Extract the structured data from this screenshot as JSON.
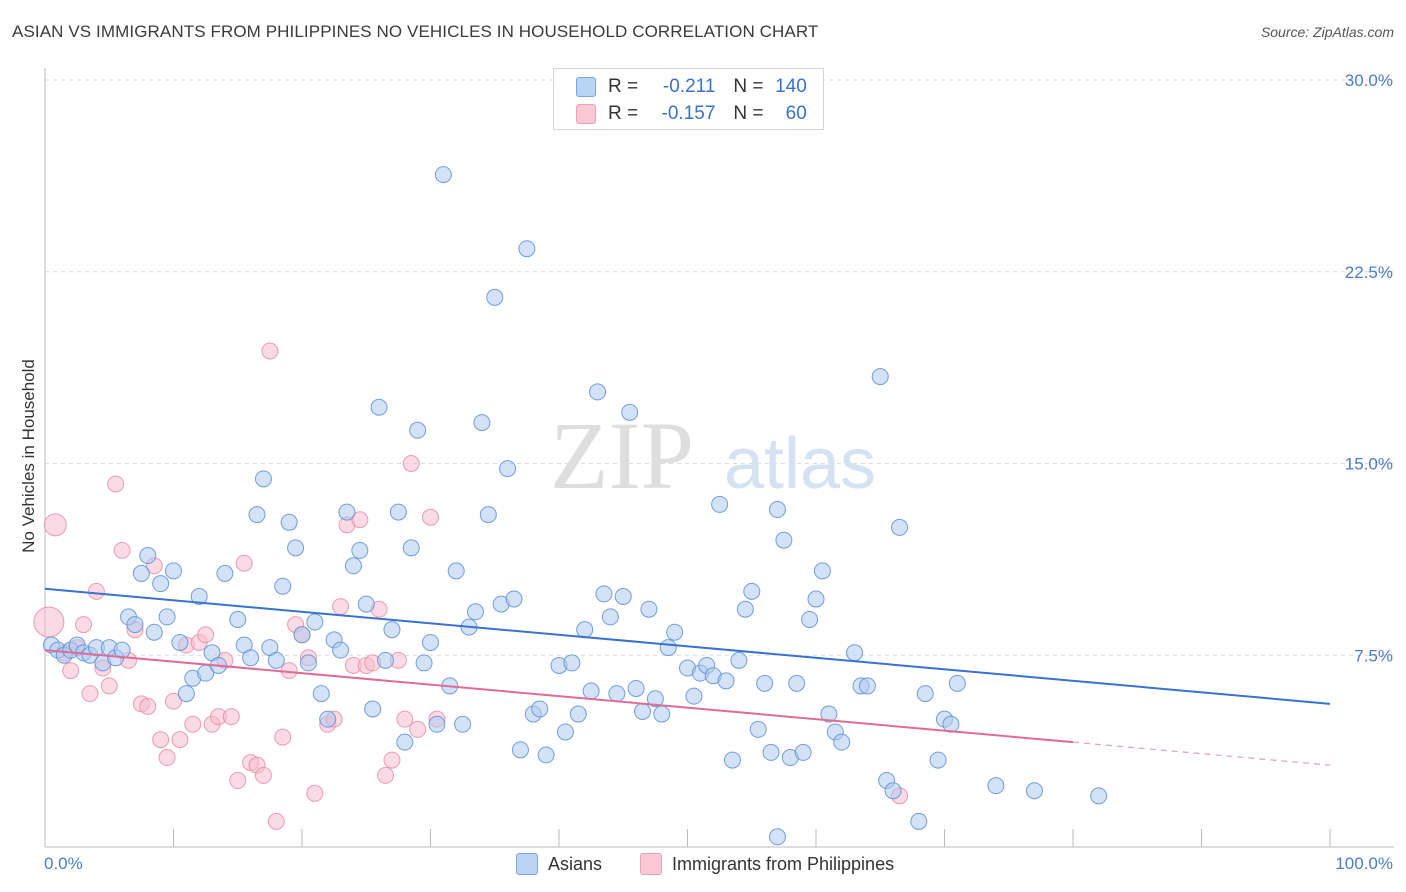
{
  "title": "ASIAN VS IMMIGRANTS FROM PHILIPPINES NO VEHICLES IN HOUSEHOLD CORRELATION CHART",
  "source": "Source: ZipAtlas.com",
  "watermark": {
    "zip": "ZIP",
    "atlas": "atlas"
  },
  "legend_top": [
    {
      "r_label": "R =",
      "r_value": "-0.211",
      "n_label": "N =",
      "n_value": "140",
      "color": "#a8c8f0"
    },
    {
      "r_label": "R =",
      "r_value": "-0.157",
      "n_label": "N =",
      "n_value": "60",
      "color": "#f5b8cc"
    }
  ],
  "chart_data": {
    "type": "scatter",
    "title": "ASIAN VS IMMIGRANTS FROM PHILIPPINES NO VEHICLES IN HOUSEHOLD CORRELATION CHART",
    "xlabel": "",
    "ylabel": "No Vehicles in Household",
    "xlim": [
      0,
      100
    ],
    "ylim": [
      0,
      30
    ],
    "x_tick_labels": [
      "0.0%",
      "100.0%"
    ],
    "y_ticks": [
      7.5,
      15.0,
      22.5,
      30.0
    ],
    "y_tick_labels": [
      "7.5%",
      "15.0%",
      "22.5%",
      "30.0%"
    ],
    "grid": true,
    "legend_position": "bottom",
    "series": [
      {
        "name": "Asians",
        "color": "#5b8fd6",
        "fill": "#aecbf0",
        "trend": {
          "x": [
            0,
            100
          ],
          "y": [
            10.1,
            5.6
          ],
          "color": "#3a72d0"
        },
        "points": [
          [
            0.5,
            7.9
          ],
          [
            1.0,
            7.7
          ],
          [
            1.5,
            7.5
          ],
          [
            2,
            7.7
          ],
          [
            2.5,
            7.9
          ],
          [
            3,
            7.6
          ],
          [
            3.5,
            7.5
          ],
          [
            4,
            7.8
          ],
          [
            4.5,
            7.2
          ],
          [
            5,
            7.8
          ],
          [
            5.5,
            7.4
          ],
          [
            6,
            7.7
          ],
          [
            6.5,
            9.0
          ],
          [
            7,
            8.7
          ],
          [
            7.5,
            10.7
          ],
          [
            8,
            11.4
          ],
          [
            8.5,
            8.4
          ],
          [
            9,
            10.3
          ],
          [
            9.5,
            9.0
          ],
          [
            10,
            10.8
          ],
          [
            10.5,
            8.0
          ],
          [
            11,
            6.0
          ],
          [
            11.5,
            6.6
          ],
          [
            12,
            9.8
          ],
          [
            12.5,
            6.8
          ],
          [
            13,
            7.6
          ],
          [
            13.5,
            7.1
          ],
          [
            14,
            10.7
          ],
          [
            15,
            8.9
          ],
          [
            15.5,
            7.9
          ],
          [
            16,
            7.4
          ],
          [
            16.5,
            13.0
          ],
          [
            17,
            14.4
          ],
          [
            17.5,
            7.8
          ],
          [
            18,
            7.3
          ],
          [
            18.5,
            10.2
          ],
          [
            19,
            12.7
          ],
          [
            19.5,
            11.7
          ],
          [
            20,
            8.3
          ],
          [
            20.5,
            7.2
          ],
          [
            21,
            8.8
          ],
          [
            21.5,
            6.0
          ],
          [
            22,
            5.0
          ],
          [
            22.5,
            8.1
          ],
          [
            23,
            7.7
          ],
          [
            23.5,
            13.1
          ],
          [
            24,
            11.0
          ],
          [
            24.5,
            11.6
          ],
          [
            25,
            9.5
          ],
          [
            25.5,
            5.4
          ],
          [
            26,
            17.2
          ],
          [
            26.5,
            7.3
          ],
          [
            27,
            8.5
          ],
          [
            27.5,
            13.1
          ],
          [
            28,
            4.1
          ],
          [
            28.5,
            11.7
          ],
          [
            29,
            16.3
          ],
          [
            29.5,
            7.2
          ],
          [
            30,
            8.0
          ],
          [
            30.5,
            4.8
          ],
          [
            31,
            26.3
          ],
          [
            31.5,
            6.3
          ],
          [
            32,
            10.8
          ],
          [
            32.5,
            4.8
          ],
          [
            33,
            8.6
          ],
          [
            33.5,
            9.2
          ],
          [
            34,
            16.6
          ],
          [
            34.5,
            13.0
          ],
          [
            35,
            21.5
          ],
          [
            35.5,
            9.5
          ],
          [
            36,
            14.8
          ],
          [
            36.5,
            9.7
          ],
          [
            37,
            3.8
          ],
          [
            37.5,
            23.4
          ],
          [
            38,
            5.2
          ],
          [
            38.5,
            5.4
          ],
          [
            39,
            3.6
          ],
          [
            40,
            7.1
          ],
          [
            40.5,
            4.5
          ],
          [
            41,
            7.2
          ],
          [
            41.5,
            5.2
          ],
          [
            42,
            8.5
          ],
          [
            42.5,
            6.1
          ],
          [
            43,
            17.8
          ],
          [
            43.5,
            9.9
          ],
          [
            44,
            9.0
          ],
          [
            44.5,
            6.0
          ],
          [
            45,
            9.8
          ],
          [
            45.5,
            17.0
          ],
          [
            46,
            6.2
          ],
          [
            46.5,
            5.3
          ],
          [
            47,
            9.3
          ],
          [
            47.5,
            5.8
          ],
          [
            48,
            5.2
          ],
          [
            48.5,
            7.8
          ],
          [
            49,
            8.4
          ],
          [
            50,
            7.0
          ],
          [
            50.5,
            5.9
          ],
          [
            51,
            6.8
          ],
          [
            51.5,
            7.1
          ],
          [
            52,
            6.7
          ],
          [
            52.5,
            13.4
          ],
          [
            53,
            6.5
          ],
          [
            53.5,
            3.4
          ],
          [
            54,
            7.3
          ],
          [
            54.5,
            9.3
          ],
          [
            55,
            10.0
          ],
          [
            55.5,
            4.6
          ],
          [
            56,
            6.4
          ],
          [
            56.5,
            3.7
          ],
          [
            57,
            13.2
          ],
          [
            57.5,
            12.0
          ],
          [
            58,
            3.5
          ],
          [
            58.5,
            6.4
          ],
          [
            59,
            3.7
          ],
          [
            59.5,
            8.9
          ],
          [
            60,
            9.7
          ],
          [
            60.5,
            10.8
          ],
          [
            61,
            5.2
          ],
          [
            61.5,
            4.5
          ],
          [
            62,
            4.1
          ],
          [
            63,
            7.6
          ],
          [
            63.5,
            6.3
          ],
          [
            64,
            6.3
          ],
          [
            65,
            18.4
          ],
          [
            65.5,
            2.6
          ],
          [
            66,
            2.2
          ],
          [
            66.5,
            12.5
          ],
          [
            68,
            1.0
          ],
          [
            68.5,
            6.0
          ],
          [
            69.5,
            3.4
          ],
          [
            70,
            5.0
          ],
          [
            70.5,
            4.8
          ],
          [
            71,
            6.4
          ],
          [
            74,
            2.4
          ],
          [
            77,
            2.2
          ],
          [
            82,
            2.0
          ],
          [
            57,
            0.4
          ]
        ]
      },
      {
        "name": "Immigrants from Philippines",
        "color": "#e8889f",
        "fill": "#f5bccd",
        "trend": {
          "x": [
            0,
            80
          ],
          "y": [
            7.7,
            4.1
          ],
          "color": "#e06b94"
        },
        "trend_dashed": {
          "x": [
            80,
            100
          ],
          "y": [
            4.1,
            3.2
          ]
        },
        "points": [
          [
            0.3,
            8.8
          ],
          [
            0.8,
            12.6
          ],
          [
            1.5,
            7.6
          ],
          [
            2,
            6.9
          ],
          [
            2.5,
            7.8
          ],
          [
            3,
            8.7
          ],
          [
            3.5,
            6.0
          ],
          [
            4,
            10.0
          ],
          [
            4.5,
            7.0
          ],
          [
            5,
            6.3
          ],
          [
            5.5,
            14.2
          ],
          [
            6,
            11.6
          ],
          [
            6.5,
            7.3
          ],
          [
            7,
            8.5
          ],
          [
            7.5,
            5.6
          ],
          [
            8,
            5.5
          ],
          [
            8.5,
            11.0
          ],
          [
            9,
            4.2
          ],
          [
            9.5,
            3.5
          ],
          [
            10,
            5.7
          ],
          [
            10.5,
            4.2
          ],
          [
            11,
            7.9
          ],
          [
            11.5,
            4.8
          ],
          [
            12,
            8.0
          ],
          [
            12.5,
            8.3
          ],
          [
            13,
            4.8
          ],
          [
            13.5,
            5.1
          ],
          [
            14,
            7.3
          ],
          [
            14.5,
            5.1
          ],
          [
            15,
            2.6
          ],
          [
            15.5,
            11.1
          ],
          [
            16,
            3.3
          ],
          [
            16.5,
            3.2
          ],
          [
            17,
            2.8
          ],
          [
            17.5,
            19.4
          ],
          [
            18,
            1.0
          ],
          [
            18.5,
            4.3
          ],
          [
            19,
            6.9
          ],
          [
            19.5,
            8.7
          ],
          [
            20,
            8.3
          ],
          [
            20.5,
            7.4
          ],
          [
            21,
            2.1
          ],
          [
            22,
            4.8
          ],
          [
            22.5,
            5.0
          ],
          [
            23,
            9.4
          ],
          [
            23.5,
            12.6
          ],
          [
            24,
            7.1
          ],
          [
            24.5,
            12.8
          ],
          [
            25,
            7.1
          ],
          [
            25.5,
            7.2
          ],
          [
            26,
            9.3
          ],
          [
            26.5,
            2.8
          ],
          [
            27,
            3.4
          ],
          [
            27.5,
            7.3
          ],
          [
            28,
            5.0
          ],
          [
            28.5,
            15.0
          ],
          [
            29,
            4.6
          ],
          [
            30,
            12.9
          ],
          [
            30.5,
            5.0
          ],
          [
            66.5,
            2.0
          ]
        ]
      }
    ]
  },
  "legend_bottom": [
    {
      "label": "Asians",
      "color": "#a8c8f0",
      "border": "#6f9ee0"
    },
    {
      "label": "Immigrants from Philippines",
      "color": "#f7c4d3",
      "border": "#e6a0b6"
    }
  ]
}
